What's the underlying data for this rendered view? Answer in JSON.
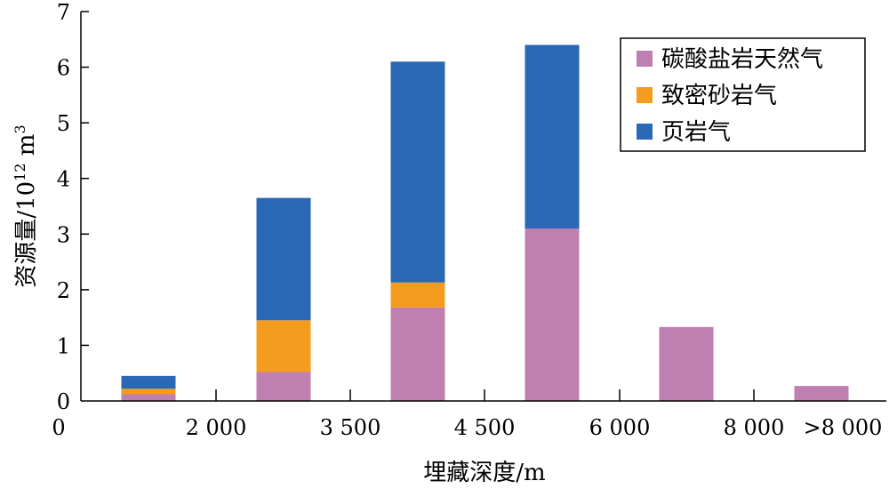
{
  "chart_data": {
    "type": "bar",
    "stacked": true,
    "xlabel": "埋藏深度/m",
    "ylabel": "资源量/10^12 m^3",
    "ylabel_parts": {
      "main": "资源量/10",
      "exp": "12",
      "unit": " m",
      "unit_exp": "3"
    },
    "ylim": [
      0,
      7
    ],
    "yticks": [
      "0",
      "1",
      "2",
      "3",
      "4",
      "5",
      "6",
      "7"
    ],
    "xtick_labels": [
      "0",
      "2 000",
      "3 500",
      "4 500",
      "6 000",
      "8 000",
      ">8 000"
    ],
    "categories": [
      "<2 000",
      "2 000–3 500",
      "3 500–4 500",
      "4 500–6 000",
      "6 000–8 000",
      ">8 000"
    ],
    "series": [
      {
        "name": "碳酸盐岩天然气",
        "color": "#bf7fb0",
        "values": [
          0.12,
          0.52,
          1.68,
          3.1,
          1.33,
          0.27
        ]
      },
      {
        "name": "致密砂岩气",
        "color": "#f39c1f",
        "values": [
          0.1,
          0.93,
          0.45,
          0,
          0,
          0
        ]
      },
      {
        "name": "页岩气",
        "color": "#2a67b5",
        "values": [
          0.23,
          2.2,
          3.97,
          3.3,
          0,
          0
        ]
      }
    ],
    "legend": "top-right",
    "grid": false
  }
}
